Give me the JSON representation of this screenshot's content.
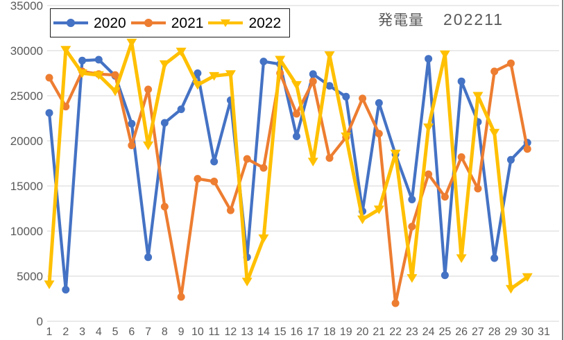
{
  "header": {
    "title": "発電量",
    "subtitle": "202211"
  },
  "colors": {
    "series_2020": "#4472C4",
    "series_2021": "#ED7D31",
    "series_2022": "#FFC000",
    "axis_text": "#595959",
    "gridline": "#D6D6D6",
    "legend_text": "#000000",
    "legend_border": "#1A1A1A",
    "title_text": "#595959",
    "background": "#FFFFFF"
  },
  "chart_data": {
    "type": "line",
    "title": "発電量 202211",
    "xlabel": "",
    "ylabel": "",
    "x": [
      1,
      2,
      3,
      4,
      5,
      6,
      7,
      8,
      9,
      10,
      11,
      12,
      13,
      14,
      15,
      16,
      17,
      18,
      19,
      20,
      21,
      22,
      23,
      24,
      25,
      26,
      27,
      28,
      29,
      30
    ],
    "x_axis_ticks": [
      "1",
      "2",
      "3",
      "4",
      "5",
      "6",
      "7",
      "8",
      "9",
      "10",
      "11",
      "12",
      "13",
      "14",
      "15",
      "16",
      "17",
      "18",
      "19",
      "20",
      "21",
      "22",
      "23",
      "24",
      "25",
      "26",
      "27",
      "28",
      "29",
      "30",
      "31"
    ],
    "y_ticks": [
      0,
      5000,
      10000,
      15000,
      20000,
      25000,
      30000,
      35000
    ],
    "ylim": [
      0,
      35000
    ],
    "grid": true,
    "legend_position": "top-left",
    "series": [
      {
        "name": "2020",
        "color": "#4472C4",
        "marker": "circle",
        "values": [
          23100,
          3500,
          28900,
          29000,
          27200,
          21900,
          7100,
          22000,
          23500,
          27500,
          17700,
          24500,
          7100,
          28800,
          28500,
          20500,
          27400,
          26100,
          24900,
          12200,
          24200,
          18500,
          13500,
          29100,
          5100,
          26600,
          22100,
          7000,
          17900,
          19800
        ]
      },
      {
        "name": "2021",
        "color": "#ED7D31",
        "marker": "circle",
        "values": [
          27000,
          23800,
          27700,
          27400,
          27300,
          19500,
          25700,
          12700,
          2700,
          15800,
          15500,
          12300,
          18000,
          17000,
          27500,
          23000,
          26600,
          18100,
          20400,
          24700,
          20800,
          2000,
          10500,
          16300,
          13800,
          18200,
          14700,
          27700,
          28600,
          19100
        ]
      },
      {
        "name": "2022",
        "color": "#FFC000",
        "marker": "triangle-down",
        "values": [
          4100,
          30100,
          27500,
          27300,
          25500,
          30900,
          19500,
          28500,
          29900,
          26200,
          27200,
          27400,
          4400,
          9200,
          29000,
          26200,
          17700,
          29500,
          20500,
          11300,
          12400,
          18600,
          4800,
          21500,
          29600,
          7000,
          25000,
          20900,
          3600,
          4900
        ]
      }
    ]
  }
}
